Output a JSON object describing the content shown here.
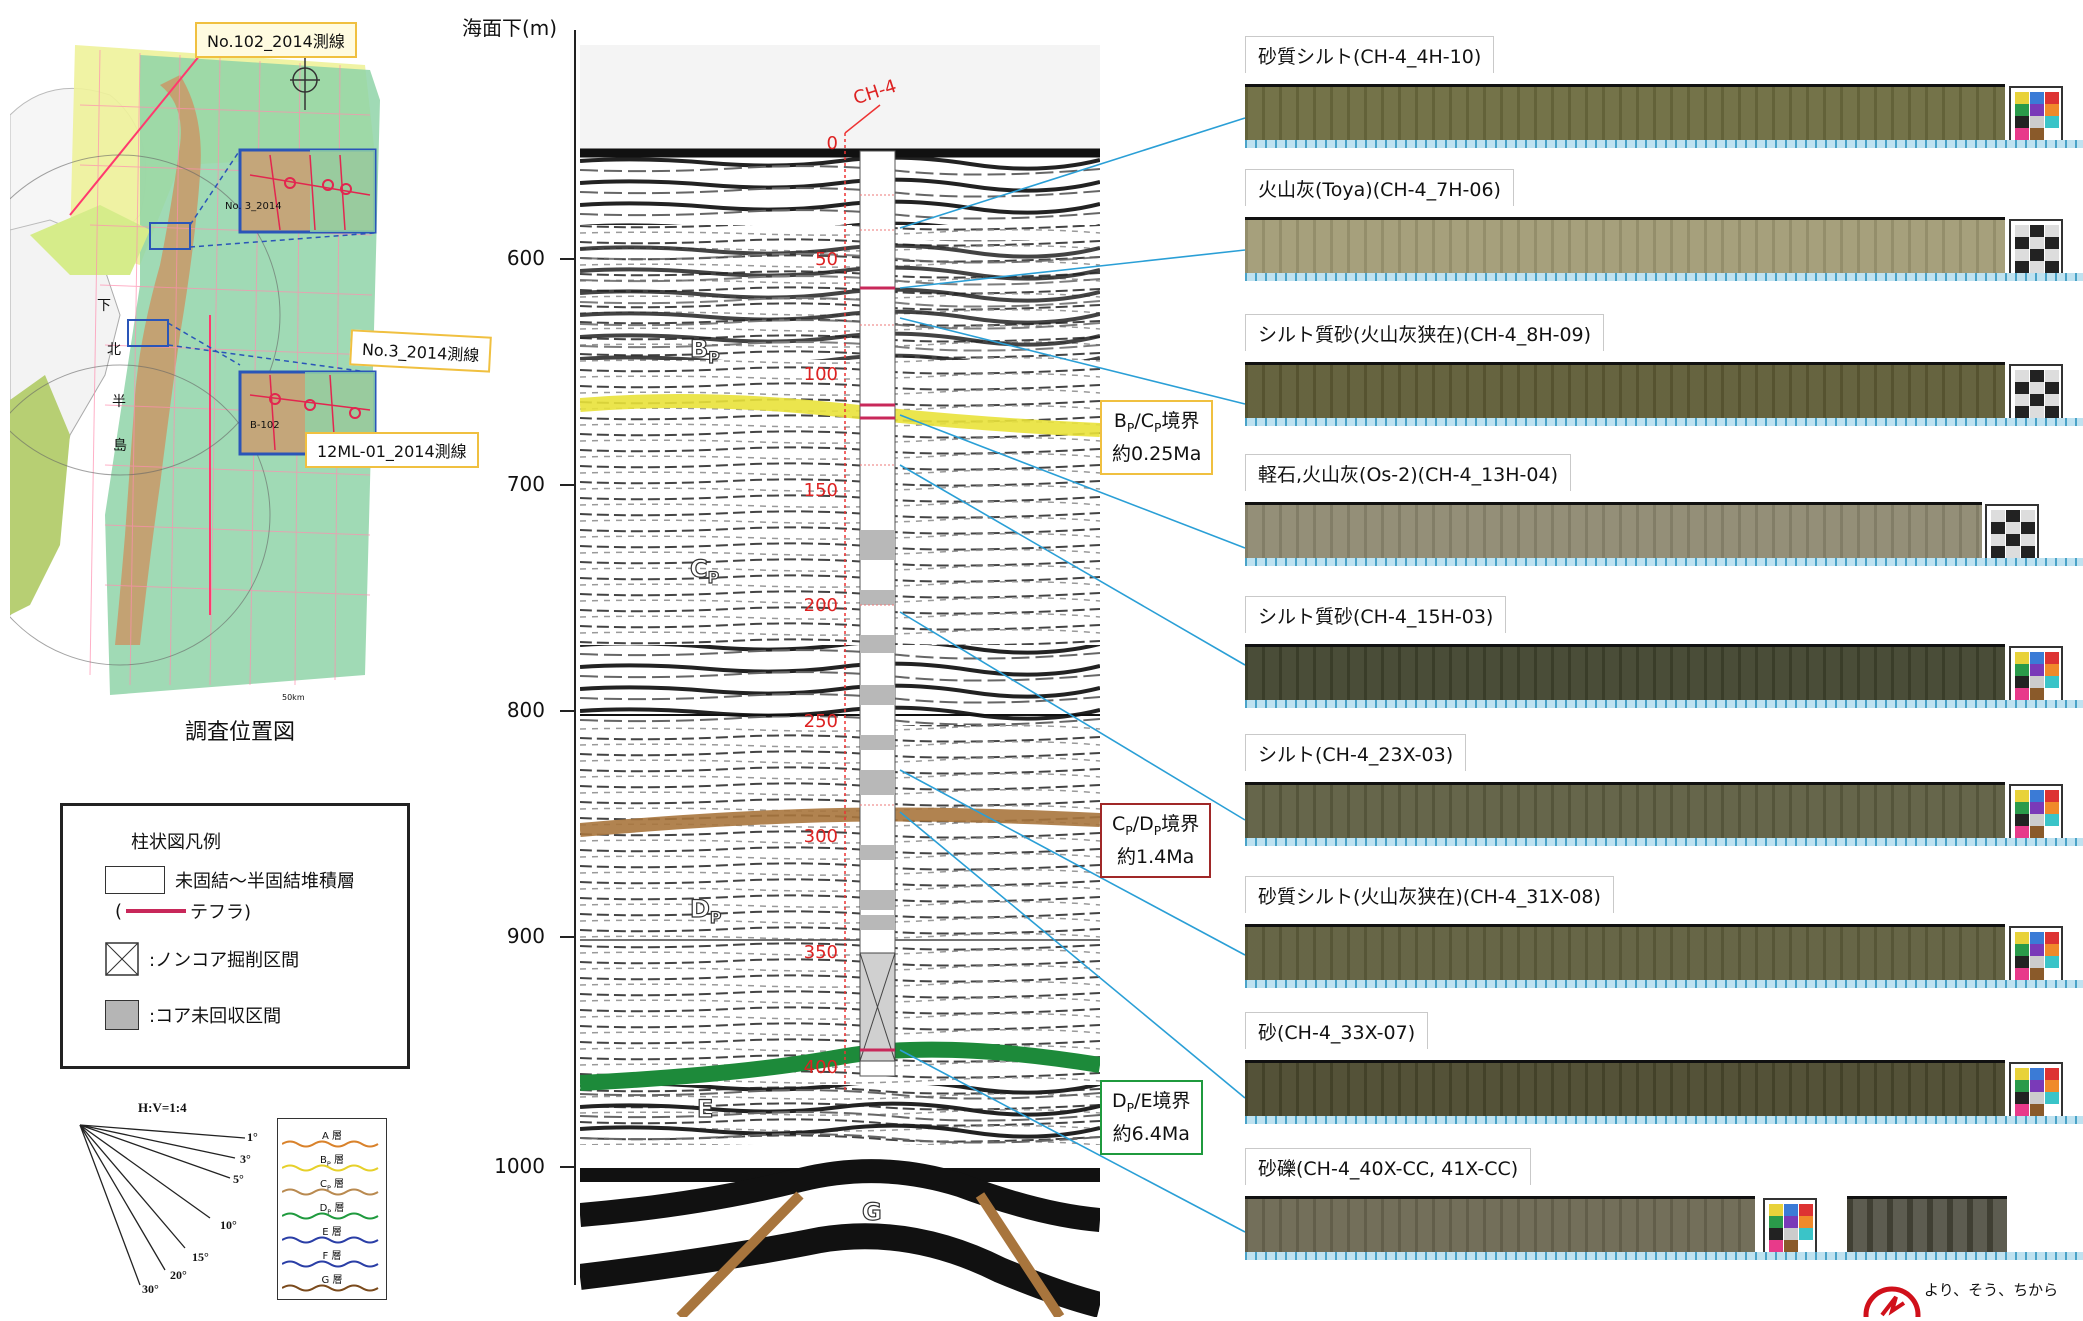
{
  "map": {
    "caption": "調査位置図",
    "callouts": [
      "No.102_2014測線",
      "No.3_2014測線",
      "12ML-01_2014測線"
    ],
    "map_labels": {
      "peninsula": [
        "下",
        "北",
        "半",
        "島"
      ],
      "scale": "50km",
      "inset1_text": "No. 3_2014",
      "inset2_text": "B-102"
    }
  },
  "legend": {
    "title": "柱状図凡例",
    "items": [
      "未固結～半固結堆積層",
      "(",
      "テフラ)",
      ":ノンコア掘削区間",
      ":コア未回収区間"
    ]
  },
  "scale_key": {
    "title": "H:V=1:4",
    "angles": [
      "1°",
      "3°",
      "5°",
      "10°",
      "15°",
      "20°",
      "30°"
    ],
    "layers": [
      {
        "name": "A 層",
        "color": "#d9822b"
      },
      {
        "name": "B",
        "sub": "P",
        "suffix": " 層",
        "color": "#e6d02a"
      },
      {
        "name": "C",
        "sub": "P",
        "suffix": " 層",
        "color": "#b98a50"
      },
      {
        "name": "D",
        "sub": "P",
        "suffix": " 層",
        "color": "#1f9a3e"
      },
      {
        "name": "E 層",
        "color": "#2a3ea6"
      },
      {
        "name": "F 層",
        "color": "#2a3ea6"
      },
      {
        "name": "G 層",
        "color": "#7a4a1c"
      }
    ]
  },
  "profile": {
    "axis_title": "海面下(m)",
    "depth_ticks": [
      "600",
      "700",
      "800",
      "900",
      "1000"
    ],
    "borehole": "CH-4",
    "borehole_ticks": [
      "0",
      "50",
      "100",
      "150",
      "200",
      "250",
      "300",
      "350",
      "400"
    ],
    "units": [
      {
        "letter": "B",
        "sub": "P"
      },
      {
        "letter": "C",
        "sub": "P"
      },
      {
        "letter": "D",
        "sub": "P"
      },
      {
        "letter": "E",
        "sub": ""
      },
      {
        "letter": "G",
        "sub": ""
      }
    ],
    "boundaries": [
      {
        "line1a": "B",
        "s1": "P",
        "line1b": "/C",
        "s2": "P",
        "line1c": "境界",
        "line2": "約0.25Ma",
        "border": "#f0c040"
      },
      {
        "line1a": "C",
        "s1": "P",
        "line1b": "/D",
        "s2": "P",
        "line1c": "境界",
        "line2": "約1.4Ma",
        "border": "#a02828"
      },
      {
        "line1a": "D",
        "s1": "P",
        "line1b": "/E",
        "s2": "",
        "line1c": "境界",
        "line2": "約6.4Ma",
        "border": "#1f9a3e"
      }
    ]
  },
  "cores": [
    {
      "label": "砂質シルト(CH-4_4H-10)",
      "color": "#6b6a3e"
    },
    {
      "label": "火山灰(Toya)(CH-4_7H-06)",
      "color": "#a09a74"
    },
    {
      "label": "シルト質砂(火山灰狭在)(CH-4_8H-09)",
      "color": "#5d5a34"
    },
    {
      "label": "軽石,火山灰(Os-2)(CH-4_13H-04)",
      "color": "#8d8870"
    },
    {
      "label": "シルト質砂(CH-4_15H-03)",
      "color": "#3f422c"
    },
    {
      "label": "シルト(CH-4_23X-03)",
      "color": "#5c5c40"
    },
    {
      "label": "砂質シルト(火山灰狭在)(CH-4_31X-08)",
      "color": "#5e5d3c"
    },
    {
      "label": "砂(CH-4_33X-07)",
      "color": "#49472c"
    },
    {
      "label": "砂礫(CH-4_40X-CC, 41X-CC)",
      "color": "#6a6650"
    }
  ],
  "logo": {
    "tagline": "より、そう、ちから"
  }
}
